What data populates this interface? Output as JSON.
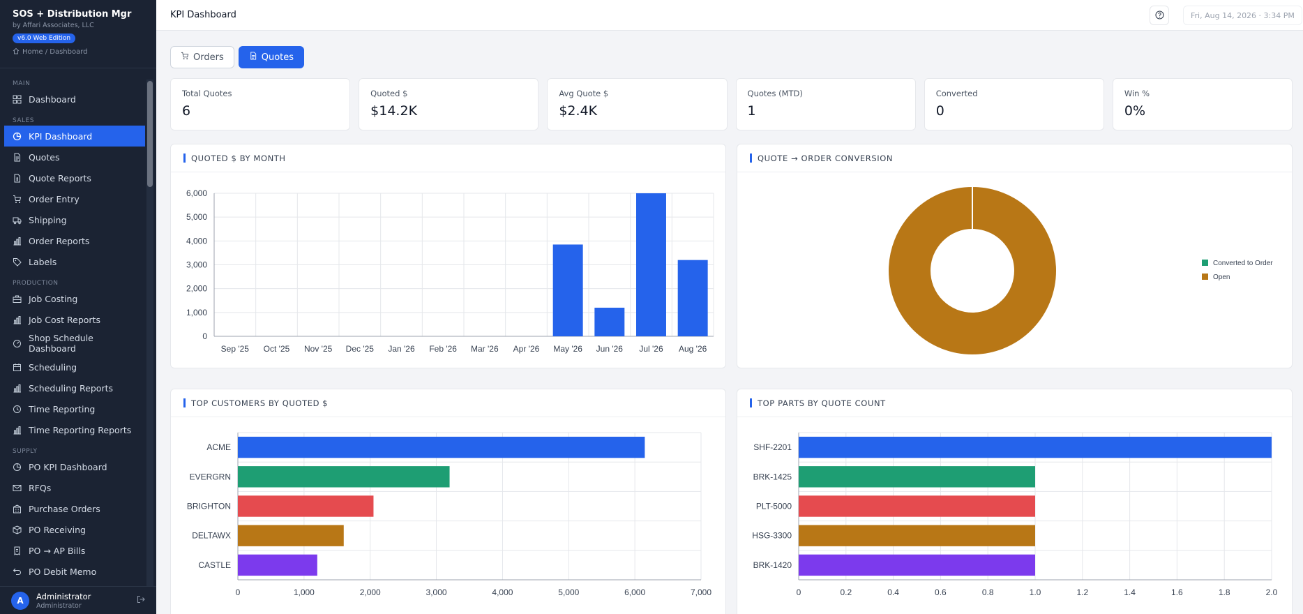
{
  "app": {
    "title": "SOS + Distribution Mgr",
    "subtitle": "by Affari Associates, LLC",
    "version": "v6.0 Web Edition",
    "breadcrumb": "Home / Dashboard"
  },
  "sidebar": {
    "sections": {
      "main": "MAIN",
      "sales": "SALES",
      "production": "PRODUCTION",
      "supply": "SUPPLY"
    },
    "items": {
      "dashboard": "Dashboard",
      "kpi_dashboard": "KPI Dashboard",
      "quotes": "Quotes",
      "quote_reports": "Quote Reports",
      "order_entry": "Order Entry",
      "shipping": "Shipping",
      "order_reports": "Order Reports",
      "labels": "Labels",
      "job_costing": "Job Costing",
      "job_cost_reports": "Job Cost Reports",
      "shop_schedule_1": "Shop Schedule",
      "shop_schedule_2": "Dashboard",
      "scheduling": "Scheduling",
      "scheduling_reports": "Scheduling Reports",
      "time_reporting": "Time Reporting",
      "time_reporting_reports": "Time Reporting Reports",
      "po_kpi_dashboard": "PO KPI Dashboard",
      "rfqs": "RFQs",
      "purchase_orders": "Purchase Orders",
      "po_receiving": "PO Receiving",
      "po_ap_bills": "PO → AP Bills",
      "po_debit_memo": "PO Debit Memo"
    },
    "active_item": "KPI Dashboard"
  },
  "user": {
    "initial": "A",
    "name": "Administrator",
    "role": "Administrator"
  },
  "header": {
    "title": "KPI Dashboard",
    "datetime": "Fri, Aug 14, 2026 · 3:34 PM"
  },
  "tabs": {
    "orders": "Orders",
    "quotes": "Quotes",
    "active": "Quotes"
  },
  "kpis": [
    {
      "label": "Total Quotes",
      "value": "6"
    },
    {
      "label": "Quoted $",
      "value": "$14.2K"
    },
    {
      "label": "Avg Quote $",
      "value": "$2.4K"
    },
    {
      "label": "Quotes (MTD)",
      "value": "1"
    },
    {
      "label": "Converted",
      "value": "0"
    },
    {
      "label": "Win %",
      "value": "0%"
    }
  ],
  "panels": {
    "quoted_by_month": "QUOTED $ BY MONTH",
    "conversion": "QUOTE → ORDER CONVERSION",
    "top_customers": "TOP CUSTOMERS BY QUOTED $",
    "top_parts": "TOP PARTS BY QUOTE COUNT"
  },
  "colors": {
    "blue": "#2563eb",
    "green": "#1e9e73",
    "red": "#e54b4f",
    "amber": "#b87716",
    "purple": "#7c3aed"
  },
  "chart_data": [
    {
      "type": "bar",
      "categories": [
        "Sep '25",
        "Oct '25",
        "Nov '25",
        "Dec '25",
        "Jan '26",
        "Feb '26",
        "Mar '26",
        "Apr '26",
        "May '26",
        "Jun '26",
        "Jul '26",
        "Aug '26"
      ],
      "values": [
        0,
        0,
        0,
        0,
        0,
        0,
        0,
        0,
        3850,
        1200,
        6000,
        3200
      ],
      "ylim": [
        0,
        6000
      ],
      "yticks": [
        "0",
        "1,000",
        "2,000",
        "3,000",
        "4,000",
        "5,000",
        "6,000"
      ],
      "grid": true,
      "color": "#2563eb"
    },
    {
      "type": "pie",
      "donut": true,
      "series": [
        {
          "name": "Converted to Order",
          "value": 0,
          "color": "#1e9e73"
        },
        {
          "name": "Open",
          "value": 6,
          "color": "#b87716"
        }
      ],
      "legend": "right"
    },
    {
      "type": "bar",
      "orientation": "horizontal",
      "categories": [
        "ACME",
        "EVERGRN",
        "BRIGHTON",
        "DELTAWX",
        "CASTLE"
      ],
      "values": [
        6150,
        3200,
        2050,
        1600,
        1200
      ],
      "colors": [
        "#2563eb",
        "#1e9e73",
        "#e54b4f",
        "#b87716",
        "#7c3aed"
      ],
      "xlim": [
        0,
        7000
      ],
      "xticks": [
        "0",
        "1,000",
        "2,000",
        "3,000",
        "4,000",
        "5,000",
        "6,000",
        "7,000"
      ],
      "grid": true
    },
    {
      "type": "bar",
      "orientation": "horizontal",
      "categories": [
        "SHF-2201",
        "BRK-1425",
        "PLT-5000",
        "HSG-3300",
        "BRK-1420"
      ],
      "values": [
        2,
        1,
        1,
        1,
        1
      ],
      "colors": [
        "#2563eb",
        "#1e9e73",
        "#e54b4f",
        "#b87716",
        "#7c3aed"
      ],
      "xlim": [
        0,
        2
      ],
      "xticks": [
        "0",
        "0.2",
        "0.4",
        "0.6",
        "0.8",
        "1.0",
        "1.2",
        "1.4",
        "1.6",
        "1.8",
        "2.0"
      ],
      "grid": true
    }
  ]
}
